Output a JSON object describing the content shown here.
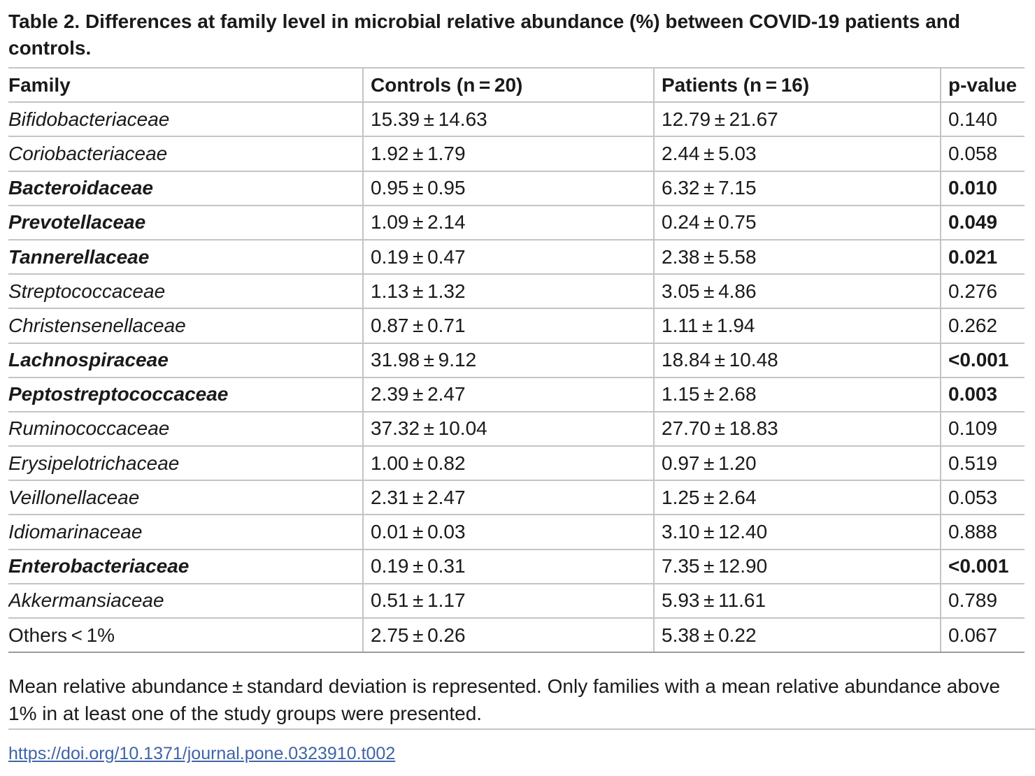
{
  "caption": "Table 2.  Differences at family level in microbial relative abundance (%) between COVID-19 patients and controls.",
  "table": {
    "headers": [
      "Family",
      "Controls (n = 20)",
      "Patients (n = 16)",
      "p-value"
    ],
    "rows": [
      {
        "family": "Bifidobacteriaceae",
        "controls": "15.39 ± 14.63",
        "patients": "12.79 ± 21.67",
        "p": "0.140",
        "significant": false
      },
      {
        "family": "Coriobacteriaceae",
        "controls": "1.92 ± 1.79",
        "patients": "2.44 ± 5.03",
        "p": "0.058",
        "significant": false
      },
      {
        "family": "Bacteroidaceae",
        "controls": "0.95 ± 0.95",
        "patients": "6.32 ± 7.15",
        "p": "0.010",
        "significant": true
      },
      {
        "family": "Prevotellaceae",
        "controls": "1.09 ± 2.14",
        "patients": "0.24 ± 0.75",
        "p": "0.049",
        "significant": true
      },
      {
        "family": "Tannerellaceae",
        "controls": "0.19 ± 0.47",
        "patients": "2.38 ± 5.58",
        "p": "0.021",
        "significant": true
      },
      {
        "family": "Streptococcaceae",
        "controls": "1.13 ± 1.32",
        "patients": "3.05 ± 4.86",
        "p": "0.276",
        "significant": false
      },
      {
        "family": "Christensenellaceae",
        "controls": "0.87 ± 0.71",
        "patients": "1.11 ± 1.94",
        "p": "0.262",
        "significant": false
      },
      {
        "family": "Lachnospiraceae",
        "controls": "31.98 ± 9.12",
        "patients": "18.84 ± 10.48",
        "p": "<0.001",
        "significant": true
      },
      {
        "family": "Peptostreptococcaceae",
        "controls": "2.39 ± 2.47",
        "patients": "1.15 ± 2.68",
        "p": "0.003",
        "significant": true
      },
      {
        "family": "Ruminococcaceae",
        "controls": "37.32 ± 10.04",
        "patients": "27.70 ± 18.83",
        "p": "0.109",
        "significant": false
      },
      {
        "family": "Erysipelotrichaceae",
        "controls": "1.00 ± 0.82",
        "patients": "0.97 ± 1.20",
        "p": "0.519",
        "significant": false
      },
      {
        "family": "Veillonellaceae",
        "controls": "2.31 ± 2.47",
        "patients": "1.25 ± 2.64",
        "p": "0.053",
        "significant": false
      },
      {
        "family": "Idiomarinaceae",
        "controls": "0.01 ± 0.03",
        "patients": "3.10 ± 12.40",
        "p": "0.888",
        "significant": false
      },
      {
        "family": "Enterobacteriaceae",
        "controls": "0.19 ± 0.31",
        "patients": "7.35 ± 12.90",
        "p": "<0.001",
        "significant": true
      },
      {
        "family": "Akkermansiaceae",
        "controls": "0.51 ± 1.17",
        "patients": "5.93 ± 11.61",
        "p": "0.789",
        "significant": false
      },
      {
        "family": "Others < 1%",
        "controls": "2.75 ± 0.26",
        "patients": "5.38 ± 0.22",
        "p": "0.067",
        "significant": false,
        "italic": false
      }
    ]
  },
  "footnote": "Mean relative abundance ± standard deviation is represented. Only families with a mean relative abundance above 1% in at least one of the study groups were presented.",
  "doi": "https://doi.org/10.1371/journal.pone.0323910.t002",
  "colors": {
    "text": "#1a1a1a",
    "rule": "#c4c4c4",
    "link": "#3f64a8"
  }
}
